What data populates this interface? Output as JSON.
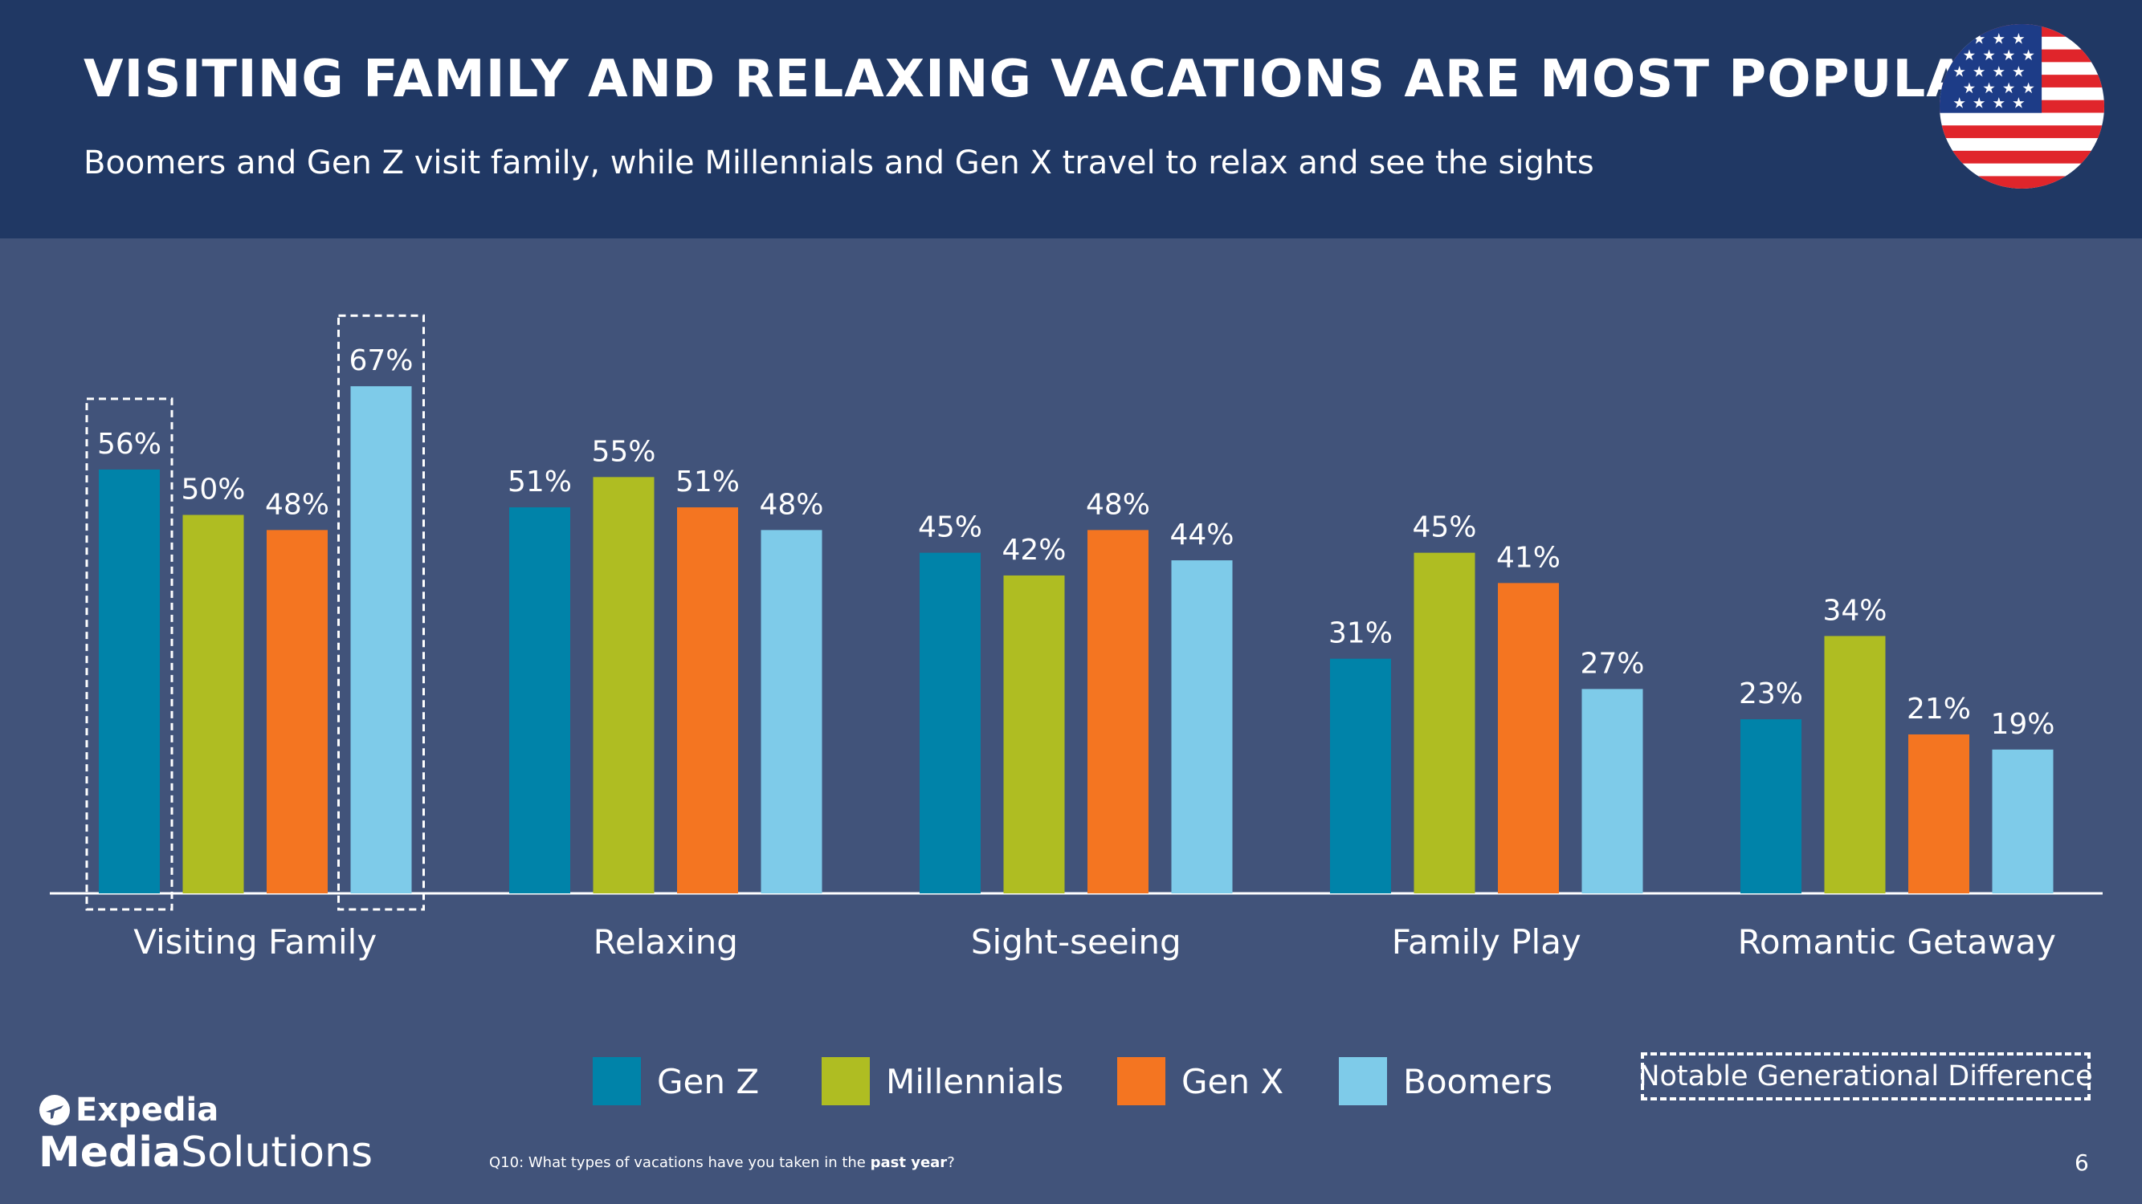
{
  "header": {
    "title": "VISITING FAMILY AND RELAXING VACATIONS ARE MOST POPULAR",
    "subtitle": "Boomers and Gen Z visit family, while Millennials and Gen X travel to relax and see the sights",
    "flag_icon": "us-flag-icon"
  },
  "chart_data": {
    "type": "bar",
    "title": "",
    "xlabel": "",
    "ylabel": "",
    "ylim": [
      0,
      70
    ],
    "grid": false,
    "legend_position": "bottom",
    "categories": [
      "Visiting Family",
      "Relaxing",
      "Sight-seeing",
      "Family Play",
      "Romantic Getaway"
    ],
    "series": [
      {
        "name": "Gen Z",
        "color": "#0083a9",
        "values": [
          56,
          51,
          45,
          31,
          23
        ],
        "labels": [
          "56%",
          "51%",
          "45%",
          "31%",
          "23%"
        ]
      },
      {
        "name": "Millennials",
        "color": "#afbd22",
        "values": [
          50,
          55,
          42,
          45,
          34
        ],
        "labels": [
          "50%",
          "55%",
          "42%",
          "45%",
          "34%"
        ]
      },
      {
        "name": "Gen X",
        "color": "#f47521",
        "values": [
          48,
          51,
          48,
          41,
          21
        ],
        "labels": [
          "48%",
          "51%",
          "48%",
          "41%",
          "21%"
        ]
      },
      {
        "name": "Boomers",
        "color": "#7ecbe9",
        "values": [
          67,
          48,
          44,
          27,
          19
        ],
        "labels": [
          "67%",
          "48%",
          "44%",
          "27%",
          "19%"
        ]
      }
    ],
    "highlighted": [
      {
        "category": "Visiting Family",
        "series": "Gen Z"
      },
      {
        "category": "Visiting Family",
        "series": "Boomers"
      }
    ]
  },
  "legend": {
    "items": [
      "Gen Z",
      "Millennials",
      "Gen X",
      "Boomers"
    ],
    "notable_label": "Notable Generational Difference"
  },
  "footer": {
    "logo_top": "Expedia",
    "logo_bottom_bold": "Media",
    "logo_bottom_regular": "Solutions",
    "question_prefix": "Q10: What types of vacations have you taken in the ",
    "question_bold": "past year",
    "question_suffix": "?",
    "page_number": "6"
  }
}
